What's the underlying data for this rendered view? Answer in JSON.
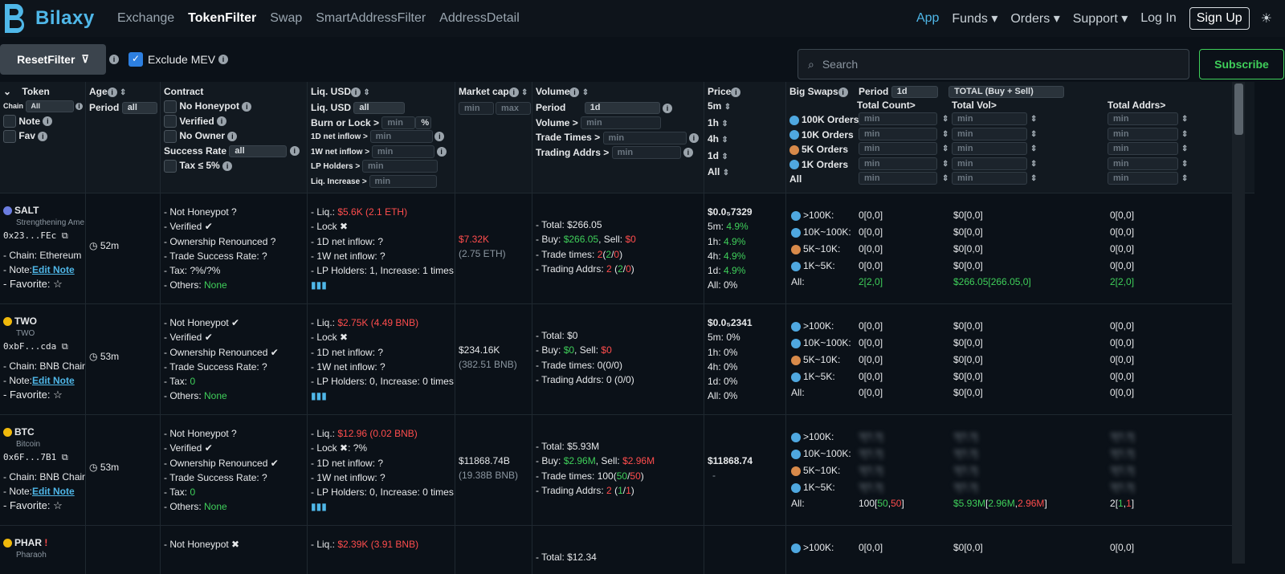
{
  "nav": {
    "brand": "Bilaxy",
    "links": [
      "Exchange",
      "TokenFilter",
      "Swap",
      "SmartAddressFilter",
      "AddressDetail"
    ],
    "app": "App",
    "funds": "Funds ▾",
    "orders": "Orders ▾",
    "support": "Support ▾",
    "login": "Log In",
    "signup": "Sign Up",
    "sun": "☀"
  },
  "toolbar": {
    "reset": "ResetFilter",
    "exclude_mev": "Exclude MEV",
    "search_placeholder": "Search",
    "subscribe": "Subscribe"
  },
  "header": {
    "token": {
      "title": "Token",
      "chain": "Chain",
      "chain_value": "All",
      "note": "Note",
      "fav": "Fav"
    },
    "age": {
      "title": "Age",
      "period": "Period",
      "period_value": "all"
    },
    "contract": {
      "title": "Contract",
      "no_honeypot": "No Honeypot",
      "verified": "Verified",
      "no_owner": "No Owner",
      "success_rate": "Success Rate",
      "success_value": "all",
      "tax": "Tax ≤ 5%"
    },
    "liq": {
      "title": "Liq. USD",
      "liq_label": "Liq. USD",
      "liq_value": "all",
      "burn": "Burn or Lock >",
      "burn_ph": "min",
      "pct": "%",
      "d1": "1D net inflow >",
      "w1": "1W net inflow >",
      "lp": "LP Holders >",
      "increase": "Liq. Increase >",
      "min": "min"
    },
    "mcap": {
      "title": "Market cap",
      "min": "min",
      "max": "max"
    },
    "volume": {
      "title": "Volume",
      "period": "Period",
      "period_value": "1d",
      "vol": "Volume >",
      "trade_times": "Trade Times >",
      "trading_addrs": "Trading Addrs >",
      "min": "min"
    },
    "price": {
      "title": "Price",
      "p5m": "5m",
      "p1h": "1h",
      "p4h": "4h",
      "p1d": "1d",
      "all": "All"
    },
    "swaps": {
      "title": "Big Swaps",
      "period": "Period",
      "period_value": "1d",
      "mode": "TOTAL (Buy + Sell)",
      "total_count": "Total Count>",
      "total_vol": "Total Vol>",
      "total_addrs": "Total Addrs>",
      "o100k": "100K Orders",
      "o10k": "10K Orders",
      "o5k": "5K Orders",
      "o1k": "1K Orders",
      "all": "All",
      "min": "min"
    }
  },
  "rows": [
    {
      "symbol": "SALT",
      "name": "Strengthening Ame",
      "addr": "0x23...FEc",
      "chain": "- Chain: Ethereum",
      "note_label": "- Note:",
      "note_link": "Edit Note",
      "fav": "- Favorite:",
      "age": "52m",
      "honeypot": "- Not Honeypot ?",
      "verified": "- Verified ✔",
      "renounced": "- Ownership Renounced ?",
      "success": "- Trade Success Rate: ?",
      "tax": "- Tax: ?%/?%",
      "others_label": "- Others: ",
      "others": "None",
      "liq_label": "- Liq.: ",
      "liq": "$5.6K (2.1 ETH)",
      "lock": "- Lock ✖",
      "d1": "- 1D net inflow: ?",
      "w1": "- 1W net inflow: ?",
      "lp": "- LP Holders: 1,  Increase: 1 times",
      "mcap": "$7.32K",
      "mcap_sub": "(2.75 ETH)",
      "v_total": "- Total: $266.05",
      "v_buy_l": "- Buy: ",
      "v_buy": "$266.05",
      "v_sell_l": ", Sell: ",
      "v_sell": "$0",
      "v_tt": "- Trade times: ",
      "v_tt_n": "2",
      "v_tt_a": "(",
      "v_tt_g": "2",
      "v_tt_s": "/",
      "v_tt_r": "0",
      "v_tt_z": ")",
      "v_ta": "- Trading Addrs: ",
      "v_ta_n": "2",
      "v_ta_a": " (",
      "v_ta_g": "2",
      "v_ta_s": "/",
      "v_ta_r": "0",
      "v_ta_z": ")",
      "price": "$0.0₅7329",
      "p5m_l": "5m: ",
      "p5m": "4.9%",
      "p1h_l": "1h: ",
      "p1h": "4.9%",
      "p4h_l": "4h: ",
      "p4h": "4.9%",
      "p1d_l": "1d: ",
      "p1d": "4.9%",
      "pall": "All: 0%",
      "bs": {
        "k100": ">100K:",
        "k10": "10K~100K:",
        "k5": "5K~10K:",
        "k1": "1K~5K:",
        "all": "All:",
        "c100": "0[0,0]",
        "c10": "0[0,0]",
        "c5": "0[0,0]",
        "c1": "0[0,0]",
        "v100": "$0[0,0]",
        "v10": "$0[0,0]",
        "v5": "$0[0,0]",
        "v1": "$0[0,0]",
        "a100": "0[0,0]",
        "a10": "0[0,0]",
        "a5": "0[0,0]",
        "a1": "0[0,0]",
        "call": "2[2,0]",
        "vall": "$266.05[266.05,0]",
        "aall": "2[2,0]"
      }
    },
    {
      "symbol": "TWO",
      "name": "TWO",
      "addr": "0xbF...cda",
      "chain": "- Chain: BNB Chain",
      "note_label": "- Note:",
      "note_link": "Edit Note",
      "fav": "- Favorite:",
      "age": "53m",
      "honeypot": "- Not Honeypot ✔",
      "verified": "- Verified ✔",
      "renounced": "- Ownership Renounced ✔",
      "success": "- Trade Success Rate: ?",
      "tax_l": "- Tax: ",
      "tax": "0",
      "others_label": "- Others: ",
      "others": "None",
      "liq_label": "- Liq.: ",
      "liq": "$2.75K (4.49 BNB)",
      "lock": "- Lock ✖",
      "d1": "- 1D net inflow: ?",
      "w1": "- 1W net inflow: ?",
      "lp": "- LP Holders: 0,  Increase: 0 times",
      "mcap": "$234.16K",
      "mcap_sub": "(382.51 BNB)",
      "v_total": "- Total: $0",
      "v_buy_l": "- Buy: ",
      "v_buy": "$0",
      "v_sell_l": ", Sell: ",
      "v_sell": "$0",
      "v_tt": "- Trade times: 0(0/0)",
      "v_ta": "- Trading Addrs: 0 (0/0)",
      "price": "$0.0₅2341",
      "pall": "All: 0%",
      "p5m": "5m: 0%",
      "p1h": "1h: 0%",
      "p4h": "4h: 0%",
      "p1d": "1d: 0%",
      "bs": {
        "k100": ">100K:",
        "k10": "10K~100K:",
        "k5": "5K~10K:",
        "k1": "1K~5K:",
        "all": "All:",
        "c100": "0[0,0]",
        "c10": "0[0,0]",
        "c5": "0[0,0]",
        "c1": "0[0,0]",
        "v100": "$0[0,0]",
        "v10": "$0[0,0]",
        "v5": "$0[0,0]",
        "v1": "$0[0,0]",
        "a100": "0[0,0]",
        "a10": "0[0,0]",
        "a5": "0[0,0]",
        "a1": "0[0,0]",
        "call": "0[0,0]",
        "vall": "$0[0,0]",
        "aall": "0[0,0]"
      }
    },
    {
      "symbol": "BTC",
      "name": "Bitcoin",
      "addr": "0x6F...7B1",
      "chain": "- Chain: BNB Chain",
      "note_label": "- Note:",
      "note_link": "Edit Note",
      "fav": "- Favorite:",
      "age": "53m",
      "honeypot": "- Not Honeypot ?",
      "verified": "- Verified ✔",
      "renounced": "- Ownership Renounced ✔",
      "success": "- Trade Success Rate: ?",
      "tax_l": "- Tax: ",
      "tax": "0",
      "others_label": "- Others: ",
      "others": "None",
      "liq_label": "- Liq.: ",
      "liq": "$12.96 (0.02 BNB)",
      "lock": "- Lock ✖: ?%",
      "d1": "- 1D net inflow: ?",
      "w1": "- 1W net inflow: ?",
      "lp": "- LP Holders: 0,  Increase: 0 times",
      "mcap": "$11868.74B",
      "mcap_sub": "(19.38B BNB)",
      "v_total": "- Total: $5.93M",
      "v_buy_l": "- Buy: ",
      "v_buy": "$2.96M",
      "v_sell_l": ", Sell: ",
      "v_sell": "$2.96M",
      "v_tt": "- Trade times: 100(",
      "v_tt_g": "50",
      "v_tt_s": "/",
      "v_tt_r": "50",
      "v_tt_z": ")",
      "v_ta": "- Trading Addrs: ",
      "v_ta_n": "2",
      "v_ta_a": " (",
      "v_ta_g": "1",
      "v_ta_r": "1",
      "price": "$11868.74",
      "pdash": "-",
      "bs": {
        "k100": ">100K:",
        "k10": "10K~100K:",
        "k5": "5K~10K:",
        "k1": "1K~5K:",
        "all": "All:",
        "blurred": "?[?,?]",
        "call_n": "100",
        "call_g": "50",
        "call_r": "50",
        "vall_g": "$5.93M",
        "vall_g2": "2.96M",
        "vall_r": "2.96M",
        "aall_n": "2",
        "aall_g": "1",
        "aall_r": "1"
      }
    },
    {
      "symbol": "PHAR",
      "name": "Pharaoh",
      "honeypot": "- Not Honeypot ✖",
      "liq_label": "- Liq.: ",
      "liq": "$2.39K (3.91 BNB)",
      "v_total": "- Total: $12.34",
      "bs": {
        "k100": ">100K:",
        "c100": "0[0,0]",
        "v100": "$0[0,0]",
        "a100": "0[0,0]"
      }
    }
  ]
}
